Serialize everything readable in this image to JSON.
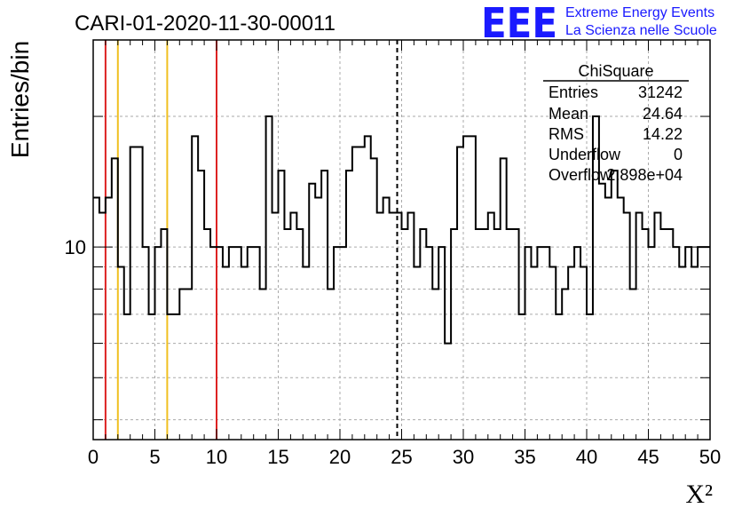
{
  "header": {
    "title": "CARI-01-2020-11-30-00011",
    "logo_mark": "EEE",
    "logo_line1": "Extreme Energy Events",
    "logo_line2": "La Scienza nelle Scuole"
  },
  "colors": {
    "frame": "#000000",
    "grid": "#aaaaaa",
    "histogram": "#000000",
    "red_marker": "#dd2222",
    "yellow_marker": "#f0c020",
    "mean_marker": "#000000",
    "logo": "#1a1aff"
  },
  "stats": {
    "title": "ChiSquare",
    "rows": [
      {
        "label": "Entries",
        "value": "31242"
      },
      {
        "label": "Mean",
        "value": "24.64"
      },
      {
        "label": "RMS",
        "value": "14.22"
      },
      {
        "label": "Underflow",
        "value": "0"
      },
      {
        "label": "Overflow",
        "value": "2.898e+04"
      }
    ]
  },
  "chart_data": {
    "type": "histogram",
    "title": "CARI-01-2020-11-30-00011",
    "xlabel": "X²",
    "ylabel": "Entries/bin",
    "xlim": [
      0,
      50
    ],
    "ylim": [
      3.6,
      30
    ],
    "yscale": "log",
    "bin_width": 0.5,
    "x_ticks": [
      "0",
      "5",
      "10",
      "15",
      "20",
      "25",
      "30",
      "35",
      "40",
      "45",
      "50"
    ],
    "y_tick_labels": [
      {
        "value": 10,
        "label": "10"
      }
    ],
    "grid": true,
    "legend": "top-right",
    "values": [
      13,
      12,
      13,
      16,
      9,
      7,
      17,
      17,
      10,
      7,
      10,
      11,
      7,
      7,
      8,
      8,
      18,
      15,
      11,
      10,
      10,
      9,
      10,
      10,
      9,
      10,
      10,
      8,
      20,
      12,
      15,
      11,
      12,
      11,
      9,
      14,
      13,
      15,
      8,
      10,
      10,
      15,
      17,
      17,
      18,
      16,
      12,
      13,
      12,
      12,
      11,
      12,
      9,
      11,
      10,
      8,
      10,
      6,
      11,
      17,
      18,
      18,
      11,
      11,
      12,
      11,
      16,
      11,
      11,
      7,
      10,
      9,
      10,
      10,
      9,
      7,
      8,
      9,
      10,
      9,
      7,
      20,
      14,
      13,
      15,
      13,
      12,
      8,
      12,
      11,
      10,
      12,
      11,
      11,
      10,
      9,
      10,
      9,
      10,
      10
    ],
    "markers": [
      {
        "x": 1,
        "color": "red",
        "style": "solid"
      },
      {
        "x": 2,
        "color": "yellow",
        "style": "solid"
      },
      {
        "x": 6,
        "color": "yellow",
        "style": "solid"
      },
      {
        "x": 10,
        "color": "red",
        "style": "solid"
      },
      {
        "x": 24.64,
        "color": "black",
        "style": "dashed"
      }
    ]
  }
}
